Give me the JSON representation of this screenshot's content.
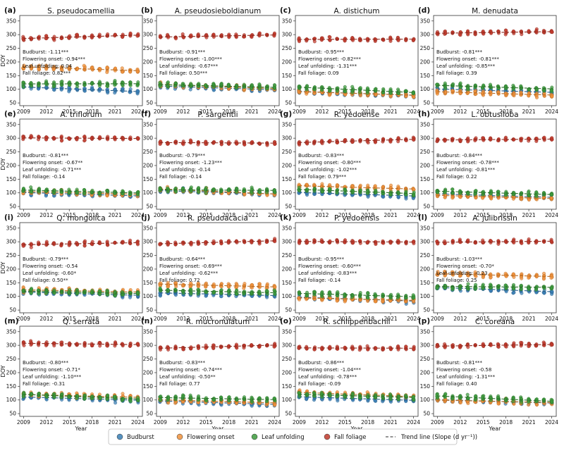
{
  "chart_data": {
    "type": "scatter",
    "y_axis_label": "DOY",
    "x_axis_label": "Year",
    "x_ticks": [
      2009,
      2012,
      2015,
      2018,
      2021,
      2024
    ],
    "y_ticks": [
      50,
      100,
      150,
      200,
      250,
      300,
      350
    ],
    "xlim": [
      2008.5,
      2024.6
    ],
    "ylim": [
      40,
      370
    ],
    "legend": {
      "placement": "bottom-center",
      "entries": [
        {
          "label": "Budburst",
          "color": "#3a7fb5"
        },
        {
          "label": "Flowering onset",
          "color": "#f0923c"
        },
        {
          "label": "Leaf unfolding",
          "color": "#3c9a3c"
        },
        {
          "label": "Fall foliage",
          "color": "#c0392b"
        },
        {
          "label": "Trend line (Slope (d yr⁻¹))",
          "color": "#555555"
        }
      ]
    },
    "stat_labels": [
      "Budburst",
      "Flowering onset",
      "Leaf unfolding",
      "Fall foliage"
    ],
    "panels": [
      {
        "label": "(a)",
        "title": "S. pseudocamellia",
        "slopes": {
          "budburst": "-1.11***",
          "flowering": "-0.94***",
          "leaf": "0.04",
          "fall": "0.82***"
        },
        "means": {
          "budburst": 100,
          "flowering": 175,
          "leaf": 120,
          "fall": 292
        }
      },
      {
        "label": "(b)",
        "title": "A. pseudosieboldianum",
        "slopes": {
          "budburst": "-0.91***",
          "flowering": "-1.00***",
          "leaf": "-0.67***",
          "fall": "0.50***"
        },
        "means": {
          "budburst": 105,
          "flowering": 110,
          "leaf": 112,
          "fall": 295
        }
      },
      {
        "label": "(c)",
        "title": "A. distichum",
        "slopes": {
          "budburst": "-0.95***",
          "flowering": "-0.82***",
          "leaf": "-1.31***",
          "fall": "0.09"
        },
        "means": {
          "budburst": 85,
          "flowering": 85,
          "leaf": 98,
          "fall": 283
        }
      },
      {
        "label": "(d)",
        "title": "M. denudata",
        "slopes": {
          "budburst": "-0.81***",
          "flowering": "-0.81***",
          "leaf": "-0.85***",
          "fall": "0.39"
        },
        "means": {
          "budburst": 95,
          "flowering": 85,
          "leaf": 108,
          "fall": 308
        }
      },
      {
        "label": "(e)",
        "title": "A. triflorum",
        "slopes": {
          "budburst": "-0.81***",
          "flowering": "-0.67**",
          "leaf": "-0.71***",
          "fall": "-0.14"
        },
        "means": {
          "budburst": 95,
          "flowering": 100,
          "leaf": 105,
          "fall": 300
        }
      },
      {
        "label": "(f)",
        "title": "P. sargentii",
        "slopes": {
          "budburst": "-0.79***",
          "flowering": "-1.23***",
          "leaf": "-0.14",
          "fall": "-0.14"
        },
        "means": {
          "budburst": 102,
          "flowering": 105,
          "leaf": 110,
          "fall": 283
        }
      },
      {
        "label": "(g)",
        "title": "R. yedoense",
        "slopes": {
          "budburst": "-0.83***",
          "flowering": "-0.80***",
          "leaf": "-1.02***",
          "fall": "0.79***"
        },
        "means": {
          "budburst": 95,
          "flowering": 120,
          "leaf": 105,
          "fall": 290
        }
      },
      {
        "label": "(h)",
        "title": "L. obtusiloba",
        "slopes": {
          "budburst": "-0.84***",
          "flowering": "-0.78***",
          "leaf": "-0.81***",
          "fall": "0.22"
        },
        "means": {
          "budburst": 90,
          "flowering": 85,
          "leaf": 100,
          "fall": 295
        }
      },
      {
        "label": "(i)",
        "title": "Q. mongolica",
        "slopes": {
          "budburst": "-0.79***",
          "flowering": "-0.54",
          "leaf": "-0.60*",
          "fall": "0.50**"
        },
        "means": {
          "budburst": 110,
          "flowering": 120,
          "leaf": 115,
          "fall": 293
        }
      },
      {
        "label": "(j)",
        "title": "R. pseudoacacia",
        "slopes": {
          "budburst": "-0.64***",
          "flowering": "-0.69***",
          "leaf": "-0.62***",
          "fall": "0.72"
        },
        "means": {
          "budburst": 108,
          "flowering": 140,
          "leaf": 118,
          "fall": 298
        }
      },
      {
        "label": "(k)",
        "title": "P. yedoensis",
        "slopes": {
          "budburst": "-0.95***",
          "flowering": "-0.60***",
          "leaf": "-0.83***",
          "fall": "-0.14"
        },
        "means": {
          "budburst": 90,
          "flowering": 90,
          "leaf": 105,
          "fall": 300
        }
      },
      {
        "label": "(l)",
        "title": "A. julibrissin",
        "slopes": {
          "budburst": "-1.03***",
          "flowering": "-0.70*",
          "leaf": "-0.23",
          "fall": "0.25"
        },
        "means": {
          "budburst": 125,
          "flowering": 178,
          "leaf": 135,
          "fall": 300
        }
      },
      {
        "label": "(m)",
        "title": "Q. serrata",
        "slopes": {
          "budburst": "-0.80***",
          "flowering": "-0.71*",
          "leaf": "-1.10***",
          "fall": "-0.31"
        },
        "means": {
          "budburst": 105,
          "flowering": 115,
          "leaf": 112,
          "fall": 305
        }
      },
      {
        "label": "(n)",
        "title": "R. mucronulatum",
        "slopes": {
          "budburst": "-0.83***",
          "flowering": "-0.74***",
          "leaf": "-0.50**",
          "fall": "0.77"
        },
        "means": {
          "budburst": 90,
          "flowering": 95,
          "leaf": 105,
          "fall": 295
        }
      },
      {
        "label": "(o)",
        "title": "R. schlippenbachii",
        "slopes": {
          "budburst": "-0.86***",
          "flowering": "-1.04***",
          "leaf": "-0.78***",
          "fall": "-0.09"
        },
        "means": {
          "budburst": 105,
          "flowering": 120,
          "leaf": 115,
          "fall": 290
        }
      },
      {
        "label": "(p)",
        "title": "C. coreana",
        "slopes": {
          "budburst": "-0.81***",
          "flowering": "-0.58",
          "leaf": "-1.31***",
          "fall": "0.40"
        },
        "means": {
          "budburst": 95,
          "flowering": 95,
          "leaf": 105,
          "fall": 300
        }
      }
    ]
  }
}
